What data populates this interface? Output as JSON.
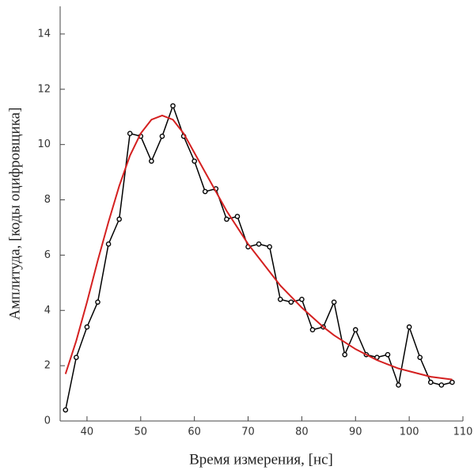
{
  "chart_data": {
    "type": "line",
    "x_label": "Время измерения, [нс]",
    "y_label": "Амплитуда, [коды оцифровщика]",
    "x": [
      36,
      38,
      40,
      42,
      44,
      46,
      48,
      50,
      52,
      54,
      56,
      58,
      60,
      62,
      64,
      66,
      68,
      70,
      72,
      74,
      76,
      78,
      80,
      82,
      84,
      86,
      88,
      90,
      92,
      94,
      96,
      98,
      100,
      102,
      104,
      106,
      108
    ],
    "series": [
      {
        "color": "#000000",
        "markers": true,
        "values": [
          0.4,
          2.3,
          3.4,
          4.3,
          6.4,
          7.3,
          10.4,
          10.3,
          9.4,
          10.3,
          11.4,
          10.3,
          9.4,
          8.3,
          8.4,
          7.3,
          7.4,
          6.3,
          6.4,
          6.3,
          4.4,
          4.3,
          4.4,
          3.3,
          3.4,
          4.3,
          2.4,
          3.3,
          2.4,
          2.3,
          2.4,
          1.3,
          3.4,
          2.3,
          1.4,
          1.3,
          1.4
        ]
      },
      {
        "color": "#d42020",
        "markers": false,
        "values": [
          1.7,
          2.9,
          4.3,
          5.8,
          7.2,
          8.5,
          9.6,
          10.4,
          10.9,
          11.05,
          10.9,
          10.4,
          9.7,
          9.0,
          8.3,
          7.6,
          7.0,
          6.4,
          5.9,
          5.4,
          4.9,
          4.5,
          4.1,
          3.75,
          3.4,
          3.1,
          2.85,
          2.6,
          2.4,
          2.2,
          2.05,
          1.9,
          1.8,
          1.7,
          1.6,
          1.55,
          1.5
        ]
      }
    ],
    "xlim": [
      35,
      110
    ],
    "ylim": [
      0,
      15
    ],
    "xticks": [
      40,
      50,
      60,
      70,
      80,
      90,
      100,
      110
    ],
    "yticks": [
      0,
      2,
      4,
      6,
      8,
      10,
      12,
      14
    ]
  }
}
